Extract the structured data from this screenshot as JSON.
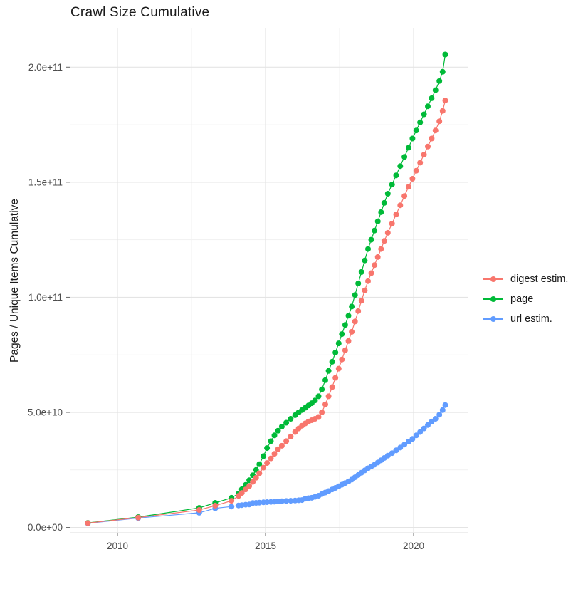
{
  "page": {
    "title": "Crawl Size Cumulative"
  },
  "chart_data": {
    "type": "scatter",
    "title": "Crawl Size Cumulative",
    "xlabel": "",
    "ylabel": "Pages / Unique Items Cumulative",
    "legend_position": "right",
    "grid": true,
    "x_unit": "year",
    "y_unit": "items (billions, 1e9)",
    "xlim": [
      2008.39,
      2021.85
    ],
    "ylim_billions": [
      -2.3,
      216.8
    ],
    "x_ticks": {
      "values": [
        2010,
        2015,
        2020
      ],
      "labels": [
        "2010",
        "2015",
        "2020"
      ],
      "minor": [
        2012.5,
        2017.5
      ]
    },
    "y_ticks": {
      "values_billions": [
        0,
        50,
        100,
        150,
        200
      ],
      "labels": [
        "0.0e+00",
        "5.0e+10",
        "1.0e+11",
        "1.5e+11",
        "2.0e+11"
      ],
      "minor_billions": [
        25,
        75,
        125,
        175
      ]
    },
    "x": [
      2009.0,
      2010.7,
      2012.76,
      2013.3,
      2013.85,
      2014.09,
      2014.2,
      2014.33,
      2014.45,
      2014.57,
      2014.68,
      2014.79,
      2014.93,
      2015.05,
      2015.18,
      2015.3,
      2015.42,
      2015.55,
      2015.7,
      2015.85,
      2016.0,
      2016.12,
      2016.23,
      2016.34,
      2016.45,
      2016.56,
      2016.67,
      2016.79,
      2016.9,
      2017.02,
      2017.13,
      2017.25,
      2017.36,
      2017.47,
      2017.58,
      2017.69,
      2017.8,
      2017.91,
      2018.02,
      2018.13,
      2018.24,
      2018.35,
      2018.46,
      2018.57,
      2018.68,
      2018.79,
      2018.9,
      2019.01,
      2019.13,
      2019.27,
      2019.41,
      2019.55,
      2019.69,
      2019.83,
      2019.96,
      2020.09,
      2020.22,
      2020.35,
      2020.48,
      2020.61,
      2020.74,
      2020.87,
      2020.98,
      2021.07
    ],
    "series": [
      {
        "name": "digest estim.",
        "color": "#F8766D",
        "values_billions": [
          1.9,
          4.3,
          7.6,
          9.5,
          11.6,
          13.7,
          15.0,
          16.5,
          18.0,
          19.8,
          21.6,
          23.5,
          26.0,
          28.0,
          30.0,
          32.0,
          34.0,
          35.5,
          37.5,
          39.5,
          41.5,
          43.0,
          44.2,
          45.2,
          46.0,
          46.6,
          47.2,
          48.0,
          50.0,
          53.5,
          57.0,
          61.0,
          65.0,
          69.0,
          73.0,
          77.0,
          81.0,
          85.0,
          89.5,
          94.0,
          98.5,
          103.0,
          107.0,
          110.5,
          114.0,
          117.5,
          121.0,
          124.5,
          128.0,
          132.0,
          136.0,
          140.0,
          144.0,
          148.0,
          151.5,
          155.0,
          158.5,
          162.0,
          165.5,
          169.0,
          172.5,
          176.5,
          181.0,
          185.5
        ]
      },
      {
        "name": "page",
        "color": "#00BA38",
        "values_billions": [
          2.0,
          4.5,
          8.5,
          10.7,
          12.9,
          14.7,
          16.6,
          18.5,
          20.5,
          22.7,
          25.0,
          27.5,
          31.0,
          34.5,
          37.5,
          40.0,
          42.0,
          43.8,
          45.5,
          47.2,
          48.8,
          50.0,
          51.0,
          52.0,
          53.0,
          54.0,
          55.2,
          57.0,
          60.0,
          64.0,
          68.0,
          72.0,
          76.0,
          80.0,
          84.0,
          88.0,
          92.0,
          96.0,
          101.0,
          106.0,
          111.0,
          116.0,
          121.0,
          125.0,
          129.0,
          133.0,
          137.0,
          141.0,
          145.0,
          149.0,
          153.0,
          157.0,
          161.0,
          165.0,
          169.0,
          172.5,
          176.0,
          179.5,
          183.0,
          186.5,
          190.0,
          194.0,
          198.0,
          205.5
        ]
      },
      {
        "name": "url estim.",
        "color": "#619CFF",
        "values_billions": [
          1.8,
          4.1,
          6.4,
          8.3,
          9.1,
          9.56,
          9.7,
          9.9,
          10.0,
          10.6,
          10.7,
          10.8,
          10.9,
          11.0,
          11.1,
          11.2,
          11.3,
          11.4,
          11.5,
          11.6,
          11.7,
          11.8,
          11.9,
          12.5,
          12.7,
          12.9,
          13.3,
          13.8,
          14.5,
          15.2,
          15.8,
          16.5,
          17.2,
          17.9,
          18.6,
          19.3,
          20.0,
          20.8,
          21.8,
          22.8,
          23.8,
          24.8,
          25.7,
          26.5,
          27.3,
          28.2,
          29.2,
          30.2,
          31.2,
          32.3,
          33.5,
          34.7,
          36.0,
          37.3,
          38.5,
          40.0,
          41.5,
          43.0,
          44.5,
          46.0,
          47.2,
          49.0,
          51.0,
          53.2
        ]
      }
    ],
    "draw_order": [
      "page",
      "url estim.",
      "digest estim."
    ]
  }
}
